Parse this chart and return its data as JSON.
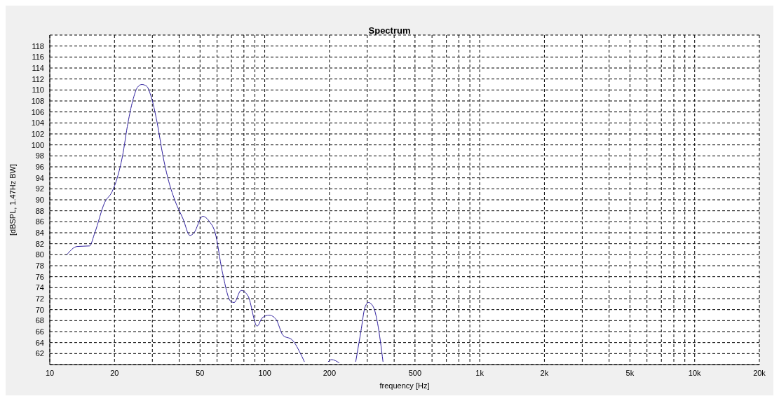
{
  "chart_data": {
    "type": "line",
    "title": "Spectrum",
    "xlabel": "frequency [Hz]",
    "ylabel": "[dBSPL, 1.47Hz BW]",
    "log": "x",
    "grid": true,
    "legend": false,
    "marker": "none",
    "line_style": "solid",
    "xlim": [
      10,
      20000
    ],
    "ylim": [
      60,
      120
    ],
    "xticks": [
      10,
      20,
      {
        "value": 30,
        "label": null
      },
      {
        "value": 40,
        "label": null
      },
      50,
      {
        "value": 60,
        "label": null
      },
      {
        "value": 70,
        "label": null
      },
      {
        "value": 80,
        "label": null
      },
      {
        "value": 90,
        "label": null
      },
      100,
      200,
      {
        "value": 300,
        "label": null
      },
      {
        "value": 400,
        "label": null
      },
      500,
      {
        "value": 600,
        "label": null
      },
      {
        "value": 700,
        "label": null
      },
      {
        "value": 800,
        "label": null
      },
      {
        "value": 900,
        "label": null
      },
      {
        "value": 1000,
        "label": "1k"
      },
      {
        "value": 2000,
        "label": "2k"
      },
      {
        "value": 3000,
        "label": null
      },
      {
        "value": 4000,
        "label": null
      },
      {
        "value": 5000,
        "label": "5k"
      },
      {
        "value": 6000,
        "label": null
      },
      {
        "value": 7000,
        "label": null
      },
      {
        "value": 8000,
        "label": null
      },
      {
        "value": 9000,
        "label": null
      },
      {
        "value": 10000,
        "label": "10k"
      },
      {
        "value": 20000,
        "label": "20k"
      }
    ],
    "yticks": [
      62,
      64,
      66,
      68,
      70,
      72,
      74,
      76,
      78,
      80,
      82,
      84,
      86,
      88,
      90,
      92,
      94,
      96,
      98,
      100,
      102,
      104,
      106,
      108,
      110,
      112,
      114,
      116,
      118
    ],
    "x": [
      12,
      13.4,
      15.3,
      16.2,
      18,
      19.5,
      20.6,
      21.8,
      23.1,
      24.3,
      25.6,
      26.8,
      28.2,
      29.5,
      31.6,
      33.6,
      35.4,
      38.1,
      41.7,
      44.9,
      46.9,
      51.4,
      55.4,
      58.8,
      63.4,
      69.5,
      72.1,
      77.6,
      83.6,
      92.2,
      97.3,
      104.8,
      113,
      121.7,
      134,
      148.8,
      153,
      175,
      197,
      204.6,
      222,
      240,
      265,
      280,
      293,
      304,
      320,
      335,
      355
    ],
    "series": [
      {
        "color": "#2e1f9e",
        "values": [
          80,
          81.5,
          81.6,
          84,
          89.5,
          91.5,
          94,
          98,
          104,
          108,
          110.5,
          111,
          110.7,
          109,
          104,
          98,
          94,
          90,
          86.5,
          83.5,
          84,
          87,
          86,
          84,
          77,
          71.5,
          71.3,
          73.5,
          72.5,
          67,
          68.5,
          69,
          68.2,
          65.3,
          64.5,
          61.5,
          60.5,
          null,
          60.5,
          60.9,
          60.3,
          null,
          60.5,
          66,
          70.5,
          71.3,
          70.5,
          67.5,
          60.5
        ]
      }
    ]
  }
}
